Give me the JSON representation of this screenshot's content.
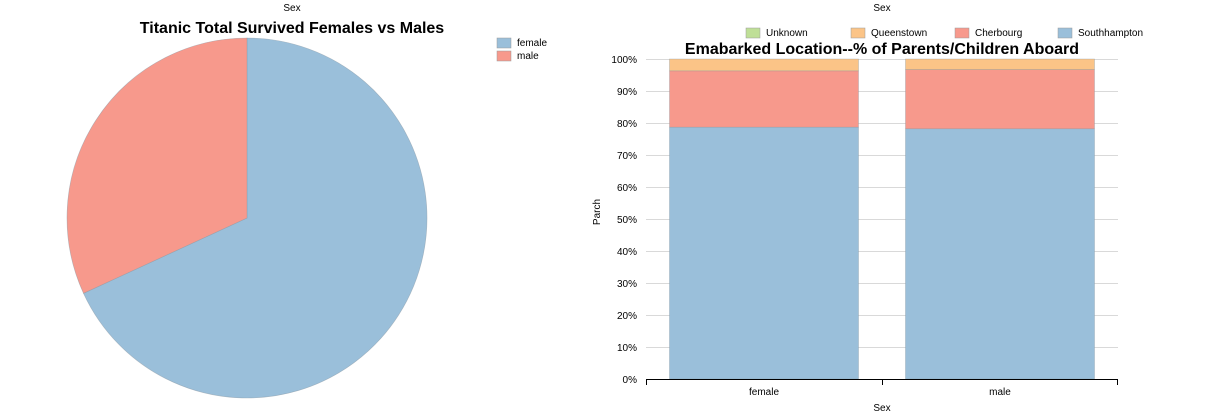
{
  "colors": {
    "female": "#9abfda",
    "male": "#f7998c",
    "Unknown": "#bfdf97",
    "Queenstown": "#fbc487",
    "Cherbourg": "#f7998c",
    "Southhampton": "#9abfda"
  },
  "chart_data": [
    {
      "type": "pie",
      "title": "Titanic Total Survived Females vs Males",
      "header": "Sex",
      "legend": [
        "female",
        "male"
      ],
      "slices": [
        {
          "label": "female",
          "value": 233
        },
        {
          "label": "male",
          "value": 109
        }
      ]
    },
    {
      "type": "bar",
      "stacked": "percent",
      "title": "Emabarked Location--% of Parents/Children Aboard",
      "header": "Sex",
      "xlabel": "Sex",
      "ylabel": "Parch",
      "categories": [
        "female",
        "male"
      ],
      "legend": [
        "Unknown",
        "Queenstown",
        "Cherbourg",
        "Southhampton"
      ],
      "ylim": [
        0,
        100
      ],
      "yticks": [
        "0%",
        "10%",
        "20%",
        "30%",
        "40%",
        "50%",
        "60%",
        "70%",
        "80%",
        "90%",
        "100%"
      ],
      "series": [
        {
          "name": "Southhampton",
          "values": [
            78.7,
            78.2
          ]
        },
        {
          "name": "Cherbourg",
          "values": [
            17.6,
            18.5
          ]
        },
        {
          "name": "Queenstown",
          "values": [
            3.7,
            3.3
          ]
        },
        {
          "name": "Unknown",
          "values": [
            0,
            0
          ]
        }
      ]
    }
  ]
}
